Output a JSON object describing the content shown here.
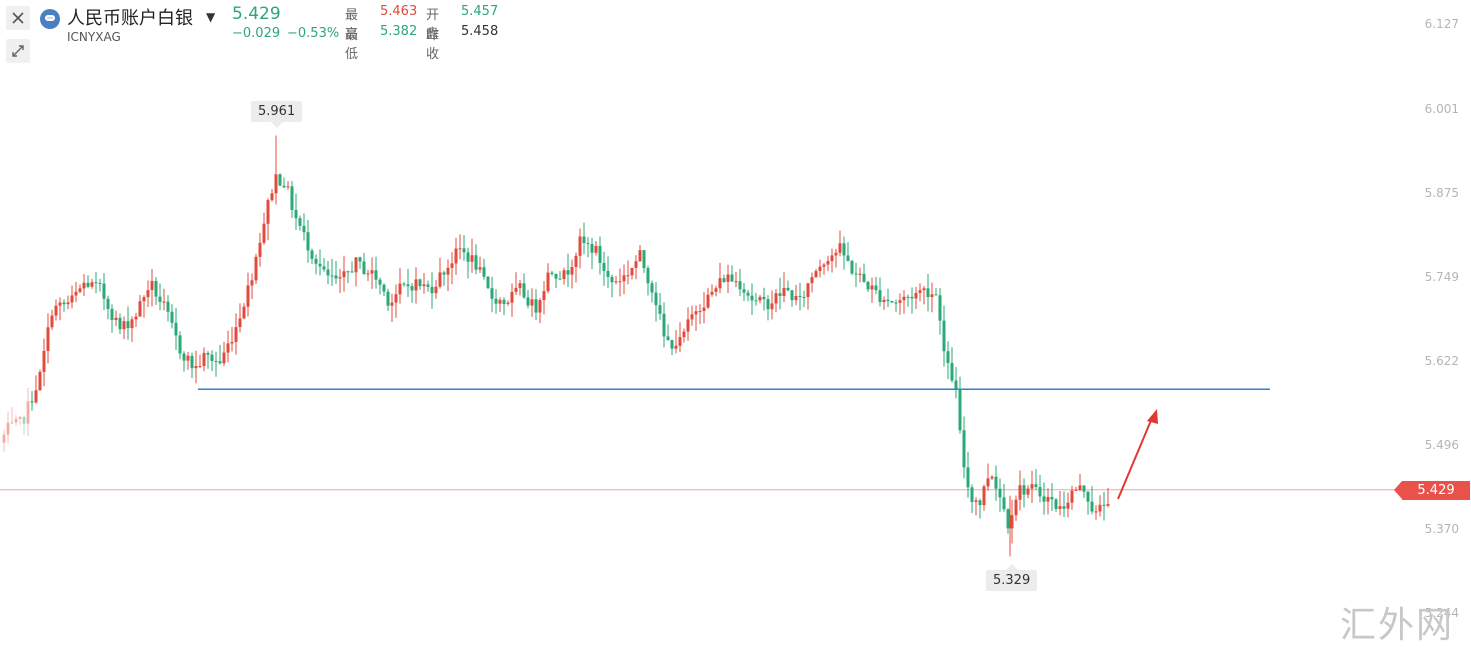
{
  "toolbar": {
    "close_icon": "close-icon",
    "expand_icon": "expand-arrows-icon"
  },
  "header": {
    "title": "人民币账户白银",
    "code": "ICNYXAG",
    "last": "5.429",
    "change": "−0.029",
    "change_pct": "−0.53%",
    "high_label": "最高",
    "high": "5.463",
    "open_label": "开盘",
    "open": "5.457",
    "low_label": "最低",
    "low": "5.382",
    "prev_label": "昨收",
    "prev_close": "5.458"
  },
  "colors": {
    "up": "#e04b3c",
    "down": "#2aa876",
    "support_line": "#2f7fd6",
    "current_line": "#f2a5a0",
    "tag": "#e9514a"
  },
  "watermark": "汇外网",
  "chart_data": {
    "type": "candlestick",
    "y_ticks": [
      "6.127",
      "6.001",
      "5.875",
      "5.749",
      "5.622",
      "5.496",
      "5.370",
      "5.244"
    ],
    "ylim": [
      5.22,
      6.14
    ],
    "current_price": "5.429",
    "max_label": "5.961",
    "min_label": "5.329",
    "support_level": 5.58,
    "annotation": "red arrow pointing up from the latest candle"
  }
}
